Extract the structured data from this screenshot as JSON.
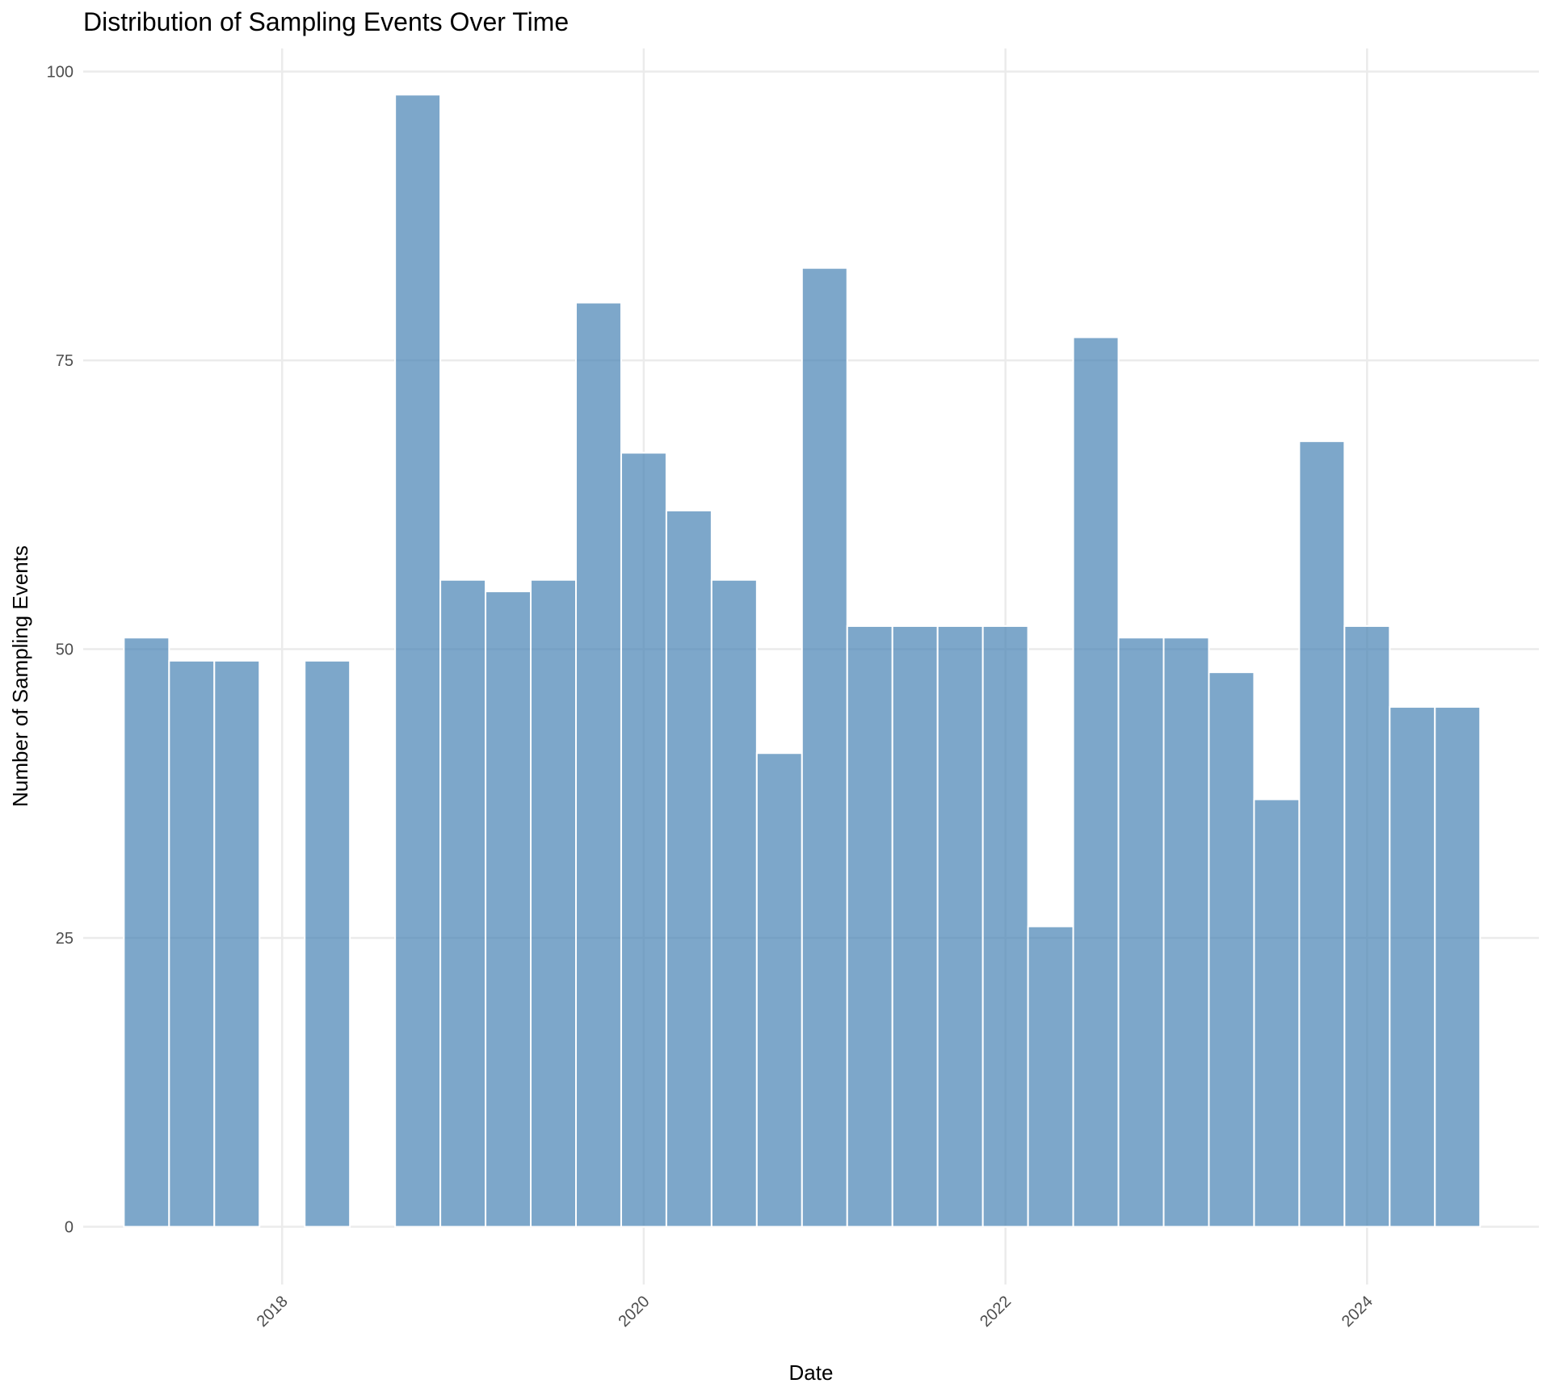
{
  "chart_data": {
    "type": "bar",
    "title": "Distribution of Sampling Events Over Time",
    "xlabel": "Date",
    "ylabel": "Number of Sampling Events",
    "xlim": [
      2016.9,
      2024.95
    ],
    "ylim": [
      -5,
      102
    ],
    "x_ticks": [
      2018,
      2020,
      2022,
      2024
    ],
    "y_ticks": [
      0,
      25,
      50,
      75,
      100
    ],
    "grid": true,
    "legend": "none",
    "bin_width_years": 0.25,
    "bins": [
      {
        "start": 2017.125,
        "value": 51
      },
      {
        "start": 2017.375,
        "value": 49
      },
      {
        "start": 2017.625,
        "value": 49
      },
      {
        "start": 2017.875,
        "value": 0
      },
      {
        "start": 2018.125,
        "value": 49
      },
      {
        "start": 2018.375,
        "value": 0
      },
      {
        "start": 2018.625,
        "value": 98
      },
      {
        "start": 2018.875,
        "value": 56
      },
      {
        "start": 2019.125,
        "value": 55
      },
      {
        "start": 2019.375,
        "value": 56
      },
      {
        "start": 2019.625,
        "value": 80
      },
      {
        "start": 2019.875,
        "value": 67
      },
      {
        "start": 2020.125,
        "value": 62
      },
      {
        "start": 2020.375,
        "value": 56
      },
      {
        "start": 2020.625,
        "value": 41
      },
      {
        "start": 2020.875,
        "value": 83
      },
      {
        "start": 2021.125,
        "value": 52
      },
      {
        "start": 2021.375,
        "value": 52
      },
      {
        "start": 2021.625,
        "value": 52
      },
      {
        "start": 2021.875,
        "value": 52
      },
      {
        "start": 2022.125,
        "value": 26
      },
      {
        "start": 2022.375,
        "value": 77
      },
      {
        "start": 2022.625,
        "value": 51
      },
      {
        "start": 2022.875,
        "value": 51
      },
      {
        "start": 2023.125,
        "value": 48
      },
      {
        "start": 2023.375,
        "value": 37
      },
      {
        "start": 2023.625,
        "value": 68
      },
      {
        "start": 2023.875,
        "value": 52
      },
      {
        "start": 2024.125,
        "value": 45
      },
      {
        "start": 2024.375,
        "value": 45
      }
    ],
    "bar_color": "#4682b4",
    "bar_opacity": 0.7
  }
}
